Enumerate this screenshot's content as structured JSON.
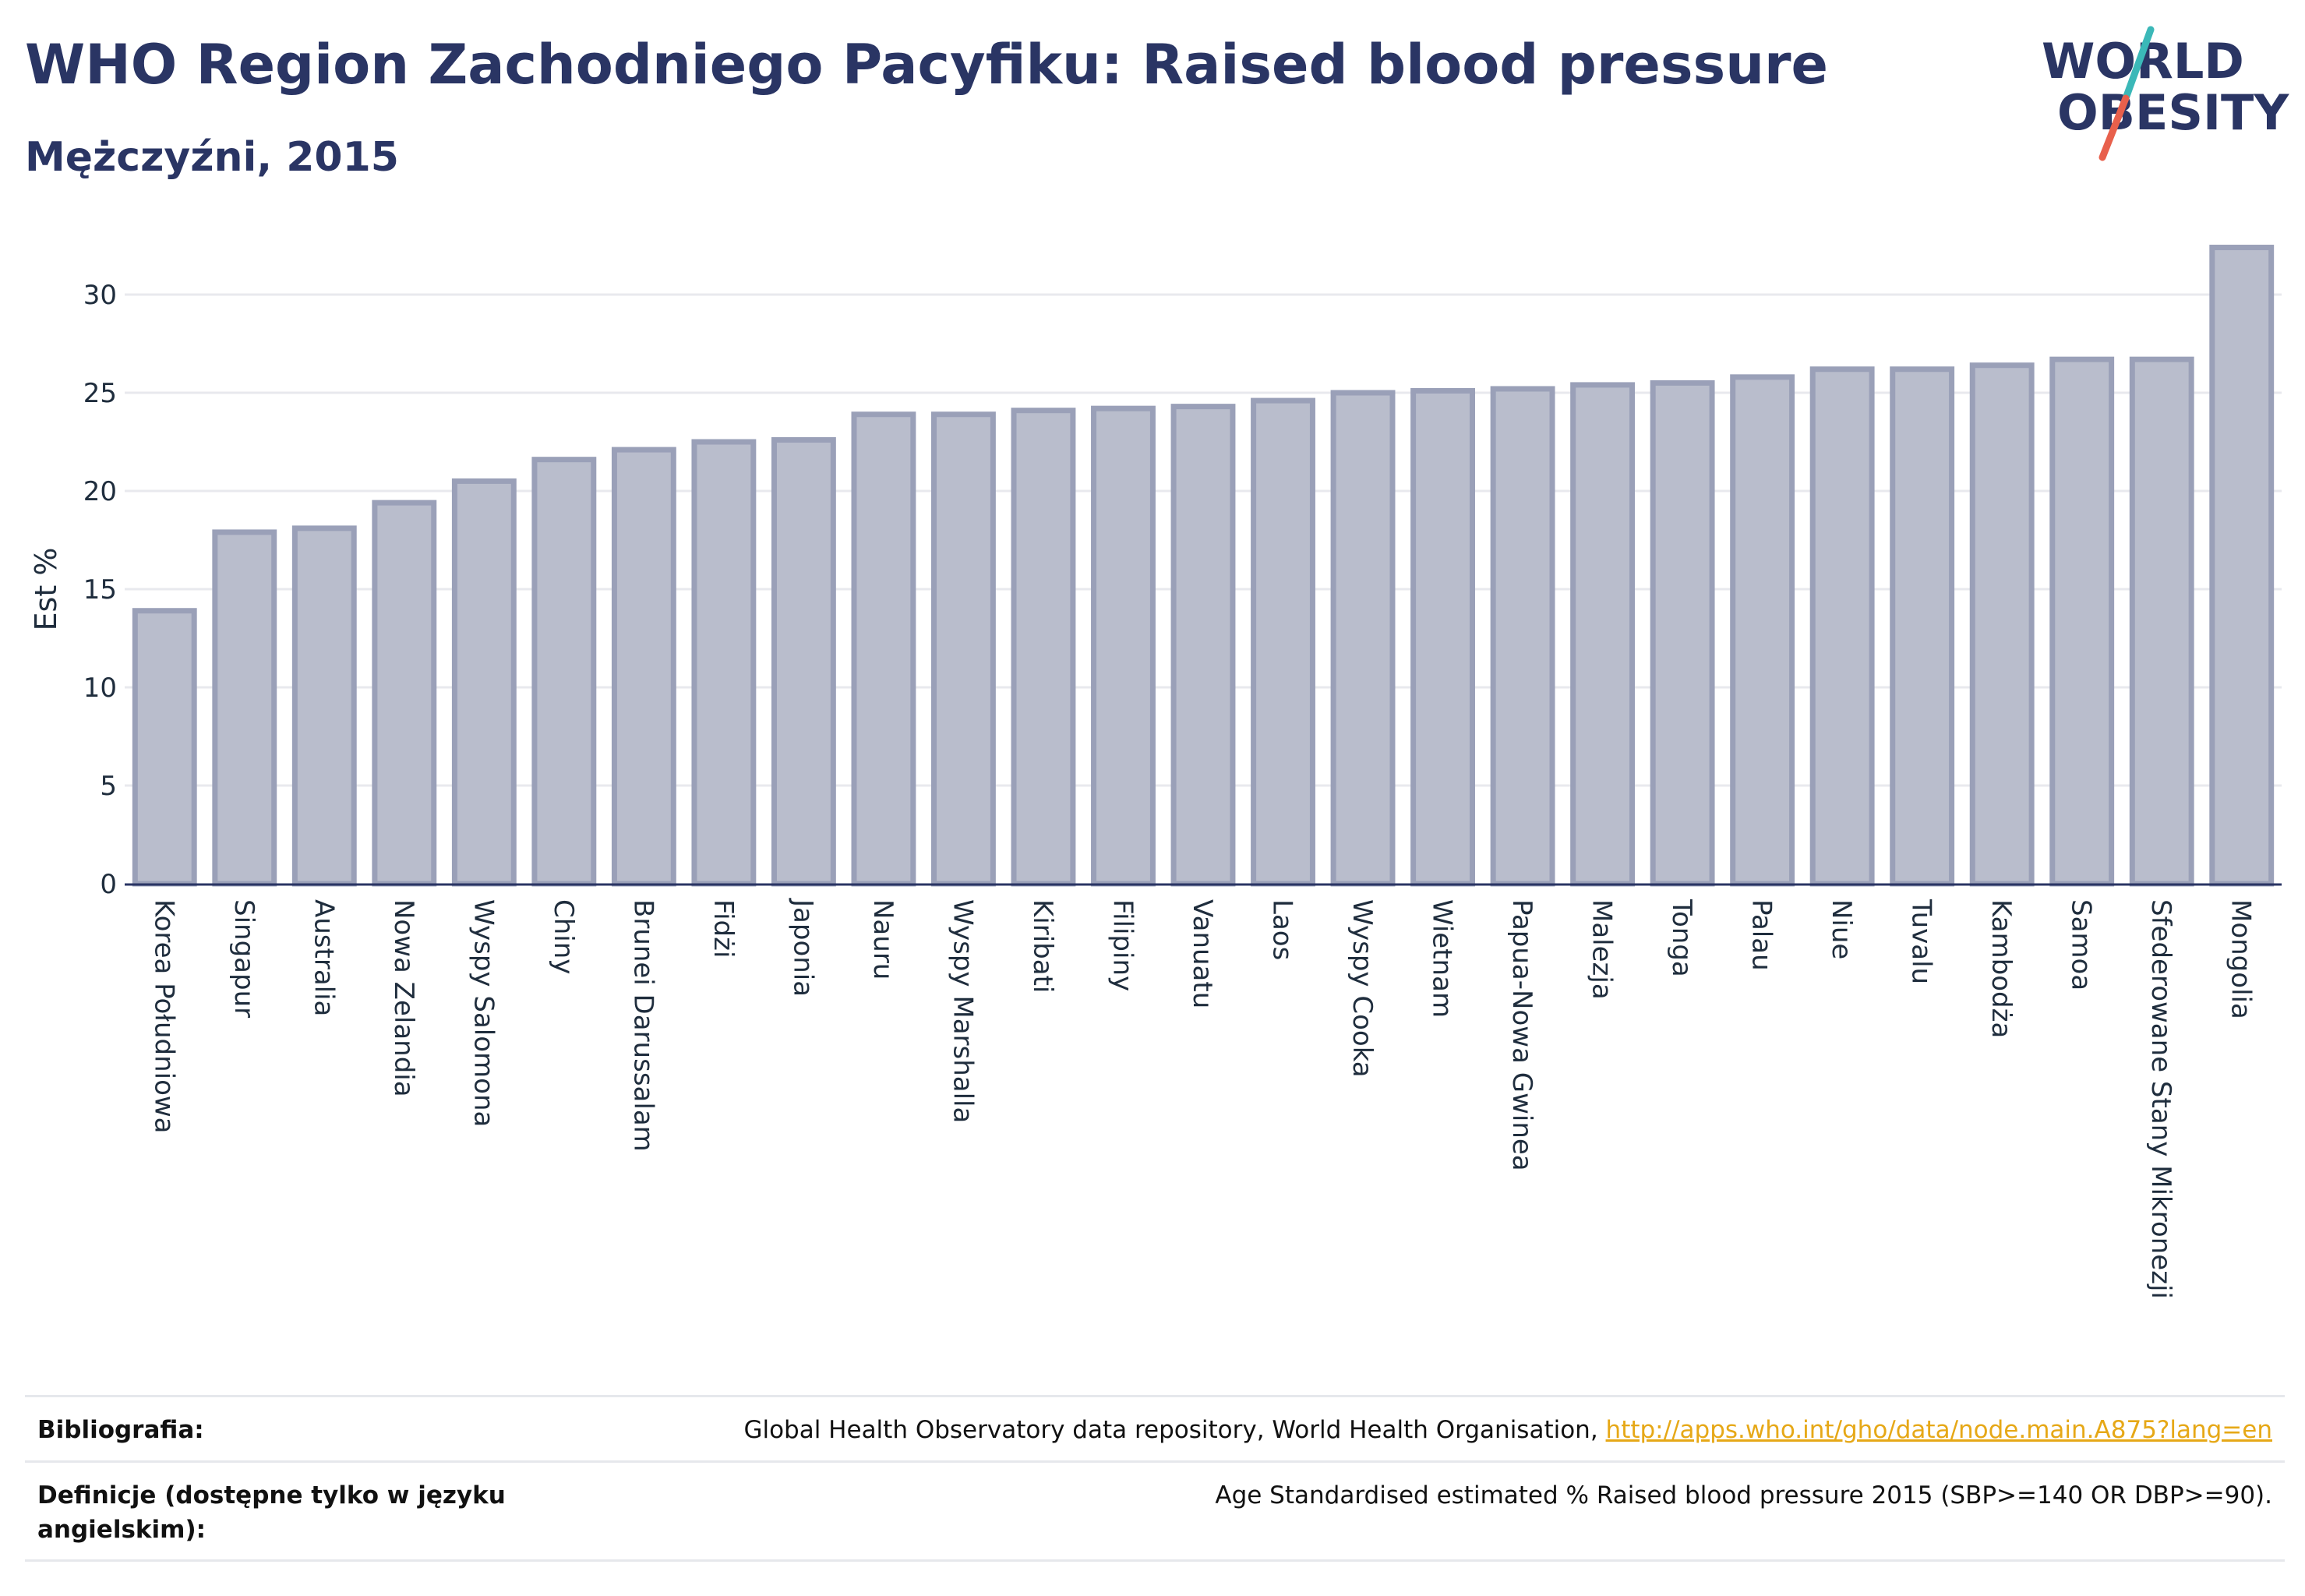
{
  "header": {
    "title": "WHO Region Zachodniego Pacyfiku: Raised blood pressure",
    "subtitle": "Mężczyźni, 2015"
  },
  "logo": {
    "line1": "WORLD",
    "line2": "OBESITY",
    "colors": {
      "text": "#2a3564",
      "slash_teal": "#3bb8b8",
      "slash_red": "#e8604c"
    }
  },
  "chart_data": {
    "type": "bar",
    "ylabel": "Est %",
    "xlabel": "",
    "ylim": [
      0,
      33
    ],
    "yticks": [
      0,
      5,
      10,
      15,
      20,
      25,
      30
    ],
    "grid": true,
    "bar_color": "#b9bdcc",
    "bar_edge_color": "#9aa0b8",
    "categories": [
      "Korea Południowa",
      "Singapur",
      "Australia",
      "Nowa Zelandia",
      "Wyspy Salomona",
      "Chiny",
      "Brunei Darussalam",
      "Fidżi",
      "Japonia",
      "Nauru",
      "Wyspy Marshalla",
      "Kiribati",
      "Filipiny",
      "Vanuatu",
      "Laos",
      "Wyspy Cooka",
      "Wietnam",
      "Papua-Nowa Gwinea",
      "Malezja",
      "Tonga",
      "Palau",
      "Niue",
      "Tuvalu",
      "Kambodża",
      "Samoa",
      "Sfederowane Stany Mikronezji",
      "Mongolia"
    ],
    "values": [
      13.9,
      17.9,
      18.1,
      19.4,
      20.5,
      21.6,
      22.1,
      22.5,
      22.6,
      23.9,
      23.9,
      24.1,
      24.2,
      24.3,
      24.6,
      25.0,
      25.1,
      25.2,
      25.4,
      25.5,
      25.8,
      26.2,
      26.2,
      26.4,
      26.7,
      26.7,
      32.4
    ]
  },
  "footer": {
    "bibliography_label": "Bibliografia:",
    "bibliography_text": "Global Health Observatory data repository, World Health Organisation, ",
    "bibliography_link": "http://apps.who.int/gho/data/node.main.A875?lang=en",
    "definitions_label": "Definicje (dostępne tylko w języku angielskim):",
    "definitions_text": "Age Standardised estimated % Raised blood pressure 2015 (SBP>=140 OR DBP>=90)."
  }
}
